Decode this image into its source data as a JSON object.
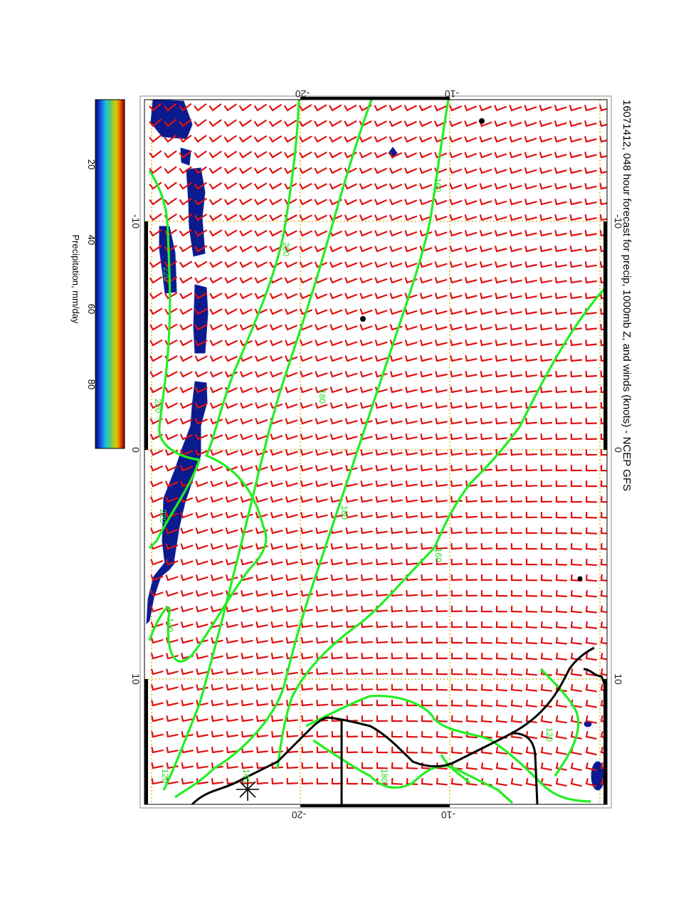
{
  "title": "16071412, 048 hour forecast for precip, 1000mb Z, and winds (knots) - NCEP GFS",
  "colorbar": {
    "label": "Precipitation, mm/day",
    "ticks": [
      "20",
      "40",
      "60",
      "80"
    ],
    "colors": [
      "#0a0a7a",
      "#1f3fd6",
      "#18b4e6",
      "#28c8a0",
      "#6cc840",
      "#c8c800",
      "#e09a00",
      "#e03800",
      "#800000"
    ]
  },
  "axes": {
    "outer_labels_top": [
      "-20",
      "-10"
    ],
    "outer_labels_bottom": [
      "-20",
      "-10"
    ],
    "side_labels_left": [
      "-10",
      "0",
      "10"
    ],
    "side_labels_right": [
      "-10",
      "0",
      "10"
    ]
  },
  "contour_labels": [
    "160",
    "200",
    "220",
    "220",
    "220",
    "180",
    "180",
    "160",
    "140",
    "180",
    "120",
    "120",
    "140"
  ],
  "colors": {
    "wind_barb": "#e01010",
    "contour": "#22ee22",
    "coast": "#000000",
    "grid": "#d4b000",
    "precip": "#0b1a8c"
  },
  "legend_icons": [
    "wind-barb-icon",
    "height-contour-icon",
    "precip-area-icon",
    "coastline-icon",
    "star-marker-icon"
  ]
}
